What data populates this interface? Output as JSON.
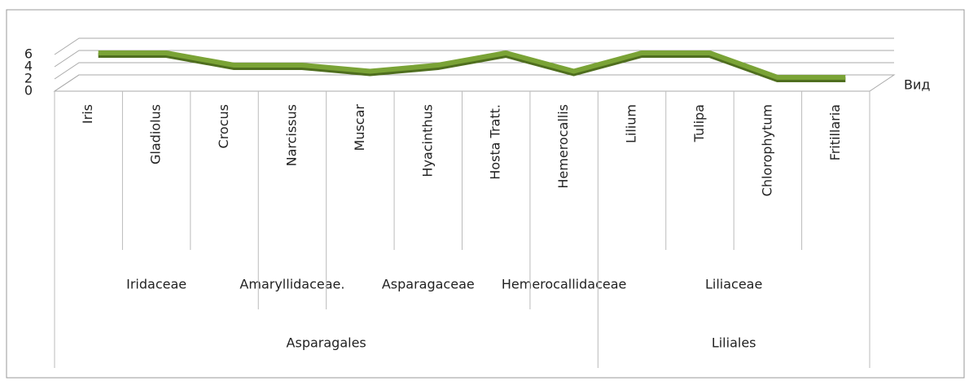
{
  "chart_data": {
    "type": "line3d",
    "categories": [
      "Iris",
      "Gladiolus",
      "Crocus",
      "Narcissus",
      "Muscar",
      "Hyacinthus",
      "Hosta Tratt.",
      "Hemerocallis",
      "Lilium",
      "Tulipa",
      "Chlorophytum",
      "Fritillaria"
    ],
    "groups": [
      {
        "label": "Iridaceae",
        "size": 3
      },
      {
        "label": "Amaryllidaceae.",
        "size": 1
      },
      {
        "label": "Asparagaceae",
        "size": 3
      },
      {
        "label": "Hemerocallidaceae",
        "size": 1
      },
      {
        "label": "Liliaceae",
        "size": 4
      }
    ],
    "supergroups": [
      {
        "label": "Asparagales",
        "size": 8
      },
      {
        "label": "Liliales",
        "size": 4
      }
    ],
    "series": [
      {
        "name": "Вид",
        "color": "#7aa336",
        "values": [
          6,
          6,
          4,
          4,
          3,
          4,
          6,
          3,
          6,
          6,
          2,
          2
        ]
      }
    ],
    "ylim": [
      0,
      6
    ],
    "yticks": [
      0,
      2,
      4,
      6
    ],
    "grid": true
  }
}
